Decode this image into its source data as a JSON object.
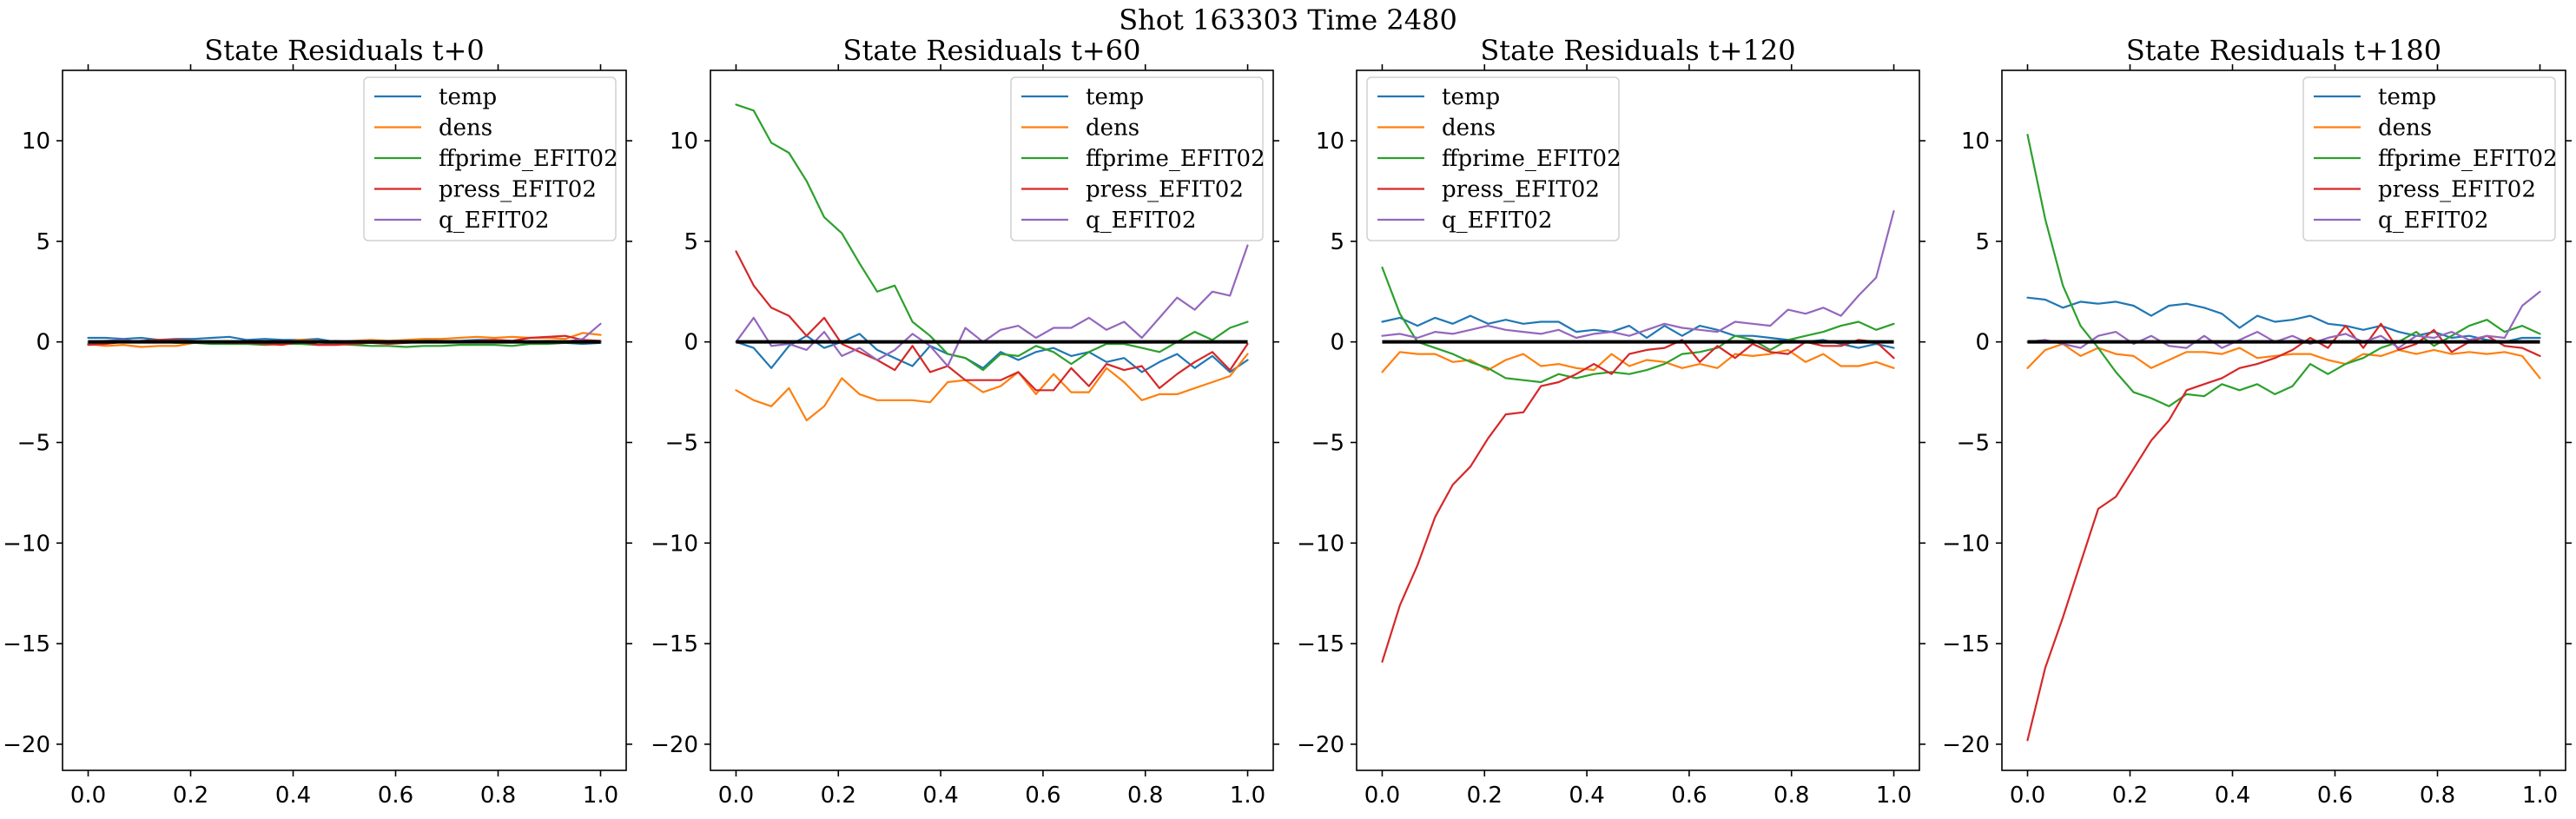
{
  "figure": {
    "suptitle": "Shot 163303   Time 2480"
  },
  "colors": {
    "temp": "#1f77b4",
    "dens": "#ff7f0e",
    "ffprime_EFIT02": "#2ca02c",
    "press_EFIT02": "#d62728",
    "q_EFIT02": "#9467bd",
    "zero_line": "#000000"
  },
  "chart_data": [
    {
      "type": "line",
      "title": "State Residuals t+0",
      "xlabel": "",
      "ylabel": "",
      "xlim": [
        -0.05,
        1.05
      ],
      "ylim": [
        -21.3,
        13.5
      ],
      "xticks": [
        0.0,
        0.2,
        0.4,
        0.6,
        0.8,
        1.0
      ],
      "xtick_labels": [
        "0.0",
        "0.2",
        "0.4",
        "0.6",
        "0.8",
        "1.0"
      ],
      "yticks": [
        -20,
        -15,
        -10,
        -5,
        0,
        5,
        10
      ],
      "ytick_labels": [
        "−20",
        "−15",
        "−10",
        "−5",
        "0",
        "5",
        "10"
      ],
      "grid": false,
      "legend_position": "upper right",
      "x": [
        0.0,
        0.0345,
        0.069,
        0.1034,
        0.1379,
        0.1724,
        0.2069,
        0.2414,
        0.2759,
        0.3103,
        0.3448,
        0.3793,
        0.4138,
        0.4483,
        0.4828,
        0.5172,
        0.5517,
        0.5862,
        0.6207,
        0.6552,
        0.6897,
        0.7241,
        0.7586,
        0.7931,
        0.8276,
        0.8621,
        0.8966,
        0.931,
        0.9655,
        1.0
      ],
      "series": [
        {
          "name": "temp",
          "values": [
            0.2,
            0.2,
            0.15,
            0.2,
            0.1,
            0.15,
            0.15,
            0.2,
            0.25,
            0.1,
            0.15,
            0.1,
            0.1,
            0.15,
            0.0,
            0.0,
            0.05,
            0.0,
            0.05,
            0.1,
            0.05,
            0.05,
            0.1,
            0.1,
            0.05,
            0.0,
            -0.05,
            -0.05,
            -0.1,
            -0.05
          ]
        },
        {
          "name": "dens",
          "values": [
            -0.1,
            -0.2,
            -0.15,
            -0.25,
            -0.2,
            -0.2,
            -0.05,
            0.0,
            0.0,
            0.05,
            -0.05,
            0.0,
            0.1,
            0.05,
            0.0,
            0.05,
            0.1,
            0.05,
            0.1,
            0.15,
            0.15,
            0.2,
            0.25,
            0.2,
            0.25,
            0.2,
            0.2,
            0.15,
            0.45,
            0.35
          ]
        },
        {
          "name": "ffprime_EFIT02",
          "values": [
            -0.1,
            -0.05,
            0.0,
            0.05,
            0.0,
            -0.05,
            -0.05,
            -0.1,
            -0.1,
            -0.1,
            -0.15,
            -0.1,
            -0.1,
            -0.15,
            -0.1,
            -0.15,
            -0.2,
            -0.2,
            -0.25,
            -0.2,
            -0.2,
            -0.15,
            -0.15,
            -0.15,
            -0.2,
            -0.1,
            -0.1,
            -0.05,
            -0.05,
            0.0
          ]
        },
        {
          "name": "press_EFIT02",
          "values": [
            -0.15,
            -0.1,
            0.0,
            0.05,
            0.1,
            0.1,
            0.05,
            0.0,
            -0.05,
            -0.05,
            -0.1,
            -0.15,
            0.0,
            -0.15,
            -0.15,
            -0.1,
            -0.05,
            -0.1,
            -0.05,
            0.0,
            0.05,
            0.0,
            0.05,
            0.1,
            0.05,
            0.2,
            0.25,
            0.3,
            0.1,
            0.05
          ]
        },
        {
          "name": "q_EFIT02",
          "values": [
            0.0,
            0.05,
            0.1,
            0.0,
            0.05,
            0.0,
            0.05,
            0.0,
            0.0,
            0.05,
            0.0,
            0.05,
            0.0,
            0.0,
            0.05,
            0.0,
            0.05,
            0.0,
            0.05,
            0.0,
            0.0,
            0.05,
            0.0,
            0.05,
            0.0,
            0.0,
            0.05,
            0.0,
            0.15,
            0.9
          ]
        }
      ]
    },
    {
      "type": "line",
      "title": "State Residuals t+60",
      "xlabel": "",
      "ylabel": "",
      "xlim": [
        -0.05,
        1.05
      ],
      "ylim": [
        -21.3,
        13.5
      ],
      "xticks": [
        0.0,
        0.2,
        0.4,
        0.6,
        0.8,
        1.0
      ],
      "xtick_labels": [
        "0.0",
        "0.2",
        "0.4",
        "0.6",
        "0.8",
        "1.0"
      ],
      "yticks": [
        -20,
        -15,
        -10,
        -5,
        0,
        5,
        10
      ],
      "ytick_labels": [
        "−20",
        "−15",
        "−10",
        "−5",
        "0",
        "5",
        "10"
      ],
      "grid": false,
      "legend_position": "upper right",
      "x": [
        0.0,
        0.0345,
        0.069,
        0.1034,
        0.1379,
        0.1724,
        0.2069,
        0.2414,
        0.2759,
        0.3103,
        0.3448,
        0.3793,
        0.4138,
        0.4483,
        0.4828,
        0.5172,
        0.5517,
        0.5862,
        0.6207,
        0.6552,
        0.6897,
        0.7241,
        0.7586,
        0.7931,
        0.8276,
        0.8621,
        0.8966,
        0.931,
        0.9655,
        1.0
      ],
      "series": [
        {
          "name": "temp",
          "values": [
            0.0,
            -0.3,
            -1.3,
            -0.2,
            0.3,
            -0.3,
            0.0,
            0.4,
            -0.4,
            -0.8,
            -1.2,
            -0.2,
            -0.6,
            -0.8,
            -1.3,
            -0.5,
            -0.9,
            -0.5,
            -0.3,
            -0.7,
            -0.5,
            -1.0,
            -0.8,
            -1.5,
            -1.0,
            -0.6,
            -1.3,
            -0.7,
            -1.5,
            -0.9
          ]
        },
        {
          "name": "dens",
          "values": [
            -2.4,
            -2.9,
            -3.2,
            -2.3,
            -3.9,
            -3.2,
            -1.8,
            -2.6,
            -2.9,
            -2.9,
            -2.9,
            -3.0,
            -2.0,
            -1.9,
            -2.5,
            -2.2,
            -1.5,
            -2.6,
            -1.6,
            -2.5,
            -2.5,
            -1.3,
            -2.0,
            -2.9,
            -2.6,
            -2.6,
            -2.3,
            -2.0,
            -1.7,
            -0.6
          ]
        },
        {
          "name": "ffprime_EFIT02",
          "values": [
            11.8,
            11.5,
            9.9,
            9.4,
            8.0,
            6.2,
            5.4,
            3.9,
            2.5,
            2.8,
            1.0,
            0.3,
            -0.6,
            -0.8,
            -1.4,
            -0.6,
            -0.7,
            -0.2,
            -0.5,
            -1.1,
            -0.5,
            -0.1,
            -0.1,
            -0.3,
            -0.5,
            0.0,
            0.5,
            0.1,
            0.7,
            1.0
          ]
        },
        {
          "name": "press_EFIT02",
          "values": [
            4.5,
            2.8,
            1.7,
            1.3,
            0.3,
            1.2,
            -0.1,
            -0.5,
            -0.9,
            -1.4,
            -0.2,
            -1.5,
            -1.2,
            -1.9,
            -1.9,
            -1.9,
            -1.5,
            -2.4,
            -2.4,
            -1.3,
            -2.2,
            -1.1,
            -1.4,
            -1.2,
            -2.3,
            -1.6,
            -1.0,
            -0.5,
            -1.4,
            -0.1
          ]
        },
        {
          "name": "q_EFIT02",
          "values": [
            0.0,
            1.2,
            -0.2,
            -0.1,
            -0.4,
            0.5,
            -0.7,
            -0.3,
            -0.9,
            -0.4,
            0.4,
            -0.2,
            -1.2,
            0.7,
            0.0,
            0.6,
            0.8,
            0.2,
            0.7,
            0.7,
            1.2,
            0.6,
            1.0,
            0.2,
            1.2,
            2.2,
            1.6,
            2.5,
            2.3,
            4.8
          ]
        }
      ]
    },
    {
      "type": "line",
      "title": "State Residuals t+120",
      "xlabel": "",
      "ylabel": "",
      "xlim": [
        -0.05,
        1.05
      ],
      "ylim": [
        -21.3,
        13.5
      ],
      "xticks": [
        0.0,
        0.2,
        0.4,
        0.6,
        0.8,
        1.0
      ],
      "xtick_labels": [
        "0.0",
        "0.2",
        "0.4",
        "0.6",
        "0.8",
        "1.0"
      ],
      "yticks": [
        -20,
        -15,
        -10,
        -5,
        0,
        5,
        10
      ],
      "ytick_labels": [
        "−20",
        "−15",
        "−10",
        "−5",
        "0",
        "5",
        "10"
      ],
      "grid": false,
      "legend_position": "upper left",
      "x": [
        0.0,
        0.0345,
        0.069,
        0.1034,
        0.1379,
        0.1724,
        0.2069,
        0.2414,
        0.2759,
        0.3103,
        0.3448,
        0.3793,
        0.4138,
        0.4483,
        0.4828,
        0.5172,
        0.5517,
        0.5862,
        0.6207,
        0.6552,
        0.6897,
        0.7241,
        0.7586,
        0.7931,
        0.8276,
        0.8621,
        0.8966,
        0.931,
        0.9655,
        1.0
      ],
      "series": [
        {
          "name": "temp",
          "values": [
            1.0,
            1.2,
            0.8,
            1.2,
            0.9,
            1.3,
            0.9,
            1.1,
            0.9,
            1.0,
            1.0,
            0.5,
            0.6,
            0.5,
            0.8,
            0.2,
            0.8,
            0.3,
            0.8,
            0.6,
            0.3,
            0.3,
            0.2,
            0.1,
            0.0,
            0.1,
            -0.1,
            -0.3,
            -0.1,
            -0.3
          ]
        },
        {
          "name": "dens",
          "values": [
            -1.5,
            -0.5,
            -0.6,
            -0.6,
            -1.0,
            -0.9,
            -1.4,
            -0.9,
            -0.6,
            -1.2,
            -1.1,
            -1.3,
            -1.4,
            -0.6,
            -1.2,
            -0.9,
            -1.0,
            -1.3,
            -1.1,
            -1.3,
            -0.6,
            -0.7,
            -0.6,
            -0.4,
            -1.0,
            -0.6,
            -1.2,
            -1.2,
            -1.0,
            -1.3
          ]
        },
        {
          "name": "ffprime_EFIT02",
          "values": [
            3.7,
            1.4,
            0.0,
            -0.3,
            -0.6,
            -1.0,
            -1.3,
            -1.8,
            -1.9,
            -2.0,
            -1.6,
            -1.8,
            -1.6,
            -1.5,
            -1.6,
            -1.4,
            -1.1,
            -0.6,
            -0.5,
            -0.3,
            0.3,
            0.1,
            -0.4,
            0.1,
            0.3,
            0.5,
            0.8,
            1.0,
            0.6,
            0.9
          ]
        },
        {
          "name": "press_EFIT02",
          "values": [
            -15.9,
            -13.1,
            -11.1,
            -8.7,
            -7.1,
            -6.2,
            -4.8,
            -3.6,
            -3.5,
            -2.2,
            -2.0,
            -1.6,
            -1.1,
            -1.6,
            -0.6,
            -0.4,
            -0.3,
            0.1,
            -1.0,
            -0.2,
            -0.8,
            -0.1,
            -0.5,
            -0.6,
            0.0,
            -0.2,
            -0.2,
            0.1,
            0.0,
            -0.8
          ]
        },
        {
          "name": "q_EFIT02",
          "values": [
            0.3,
            0.4,
            0.2,
            0.5,
            0.4,
            0.6,
            0.8,
            0.6,
            0.5,
            0.4,
            0.6,
            0.2,
            0.4,
            0.5,
            0.3,
            0.6,
            0.9,
            0.7,
            0.6,
            0.5,
            1.0,
            0.9,
            0.8,
            1.6,
            1.4,
            1.7,
            1.3,
            2.3,
            3.2,
            6.5
          ]
        }
      ]
    },
    {
      "type": "line",
      "title": "State Residuals t+180",
      "xlabel": "",
      "ylabel": "",
      "xlim": [
        -0.05,
        1.05
      ],
      "ylim": [
        -21.3,
        13.5
      ],
      "xticks": [
        0.0,
        0.2,
        0.4,
        0.6,
        0.8,
        1.0
      ],
      "xtick_labels": [
        "0.0",
        "0.2",
        "0.4",
        "0.6",
        "0.8",
        "1.0"
      ],
      "yticks": [
        -20,
        -15,
        -10,
        -5,
        0,
        5,
        10
      ],
      "ytick_labels": [
        "−20",
        "−15",
        "−10",
        "−5",
        "0",
        "5",
        "10"
      ],
      "grid": false,
      "legend_position": "upper right",
      "x": [
        0.0,
        0.0345,
        0.069,
        0.1034,
        0.1379,
        0.1724,
        0.2069,
        0.2414,
        0.2759,
        0.3103,
        0.3448,
        0.3793,
        0.4138,
        0.4483,
        0.4828,
        0.5172,
        0.5517,
        0.5862,
        0.6207,
        0.6552,
        0.6897,
        0.7241,
        0.7586,
        0.7931,
        0.8276,
        0.8621,
        0.8966,
        0.931,
        0.9655,
        1.0
      ],
      "series": [
        {
          "name": "temp",
          "values": [
            2.2,
            2.1,
            1.7,
            2.0,
            1.9,
            2.0,
            1.8,
            1.3,
            1.8,
            1.9,
            1.7,
            1.4,
            0.7,
            1.3,
            1.0,
            1.1,
            1.3,
            0.9,
            0.8,
            0.6,
            0.8,
            0.5,
            0.3,
            0.5,
            0.2,
            0.3,
            0.1,
            0.0,
            0.2,
            0.2
          ]
        },
        {
          "name": "dens",
          "values": [
            -1.3,
            -0.4,
            -0.1,
            -0.7,
            -0.3,
            -0.6,
            -0.7,
            -1.3,
            -0.9,
            -0.5,
            -0.5,
            -0.6,
            -0.3,
            -0.8,
            -0.7,
            -0.6,
            -0.6,
            -0.9,
            -1.1,
            -0.6,
            -0.7,
            -0.4,
            -0.6,
            -0.4,
            -0.6,
            -0.5,
            -0.6,
            -0.5,
            -0.7,
            -1.8
          ]
        },
        {
          "name": "ffprime_EFIT02",
          "values": [
            10.3,
            6.1,
            2.8,
            0.8,
            -0.3,
            -1.5,
            -2.5,
            -2.8,
            -3.2,
            -2.6,
            -2.7,
            -2.1,
            -2.4,
            -2.1,
            -2.6,
            -2.2,
            -1.1,
            -1.6,
            -1.1,
            -0.8,
            -0.3,
            0.0,
            0.5,
            -0.2,
            0.3,
            0.8,
            1.1,
            0.5,
            0.8,
            0.4
          ]
        },
        {
          "name": "press_EFIT02",
          "values": [
            -19.8,
            -16.2,
            -13.7,
            -11.0,
            -8.3,
            -7.7,
            -6.3,
            -4.9,
            -3.9,
            -2.4,
            -2.1,
            -1.8,
            -1.3,
            -1.1,
            -0.8,
            -0.4,
            0.2,
            -0.3,
            0.8,
            -0.3,
            0.9,
            -0.4,
            -0.1,
            0.6,
            -0.5,
            0.0,
            0.3,
            -0.2,
            -0.3,
            -0.7
          ]
        },
        {
          "name": "q_EFIT02",
          "values": [
            0.0,
            0.1,
            -0.1,
            -0.3,
            0.3,
            0.5,
            -0.1,
            0.3,
            -0.2,
            -0.3,
            0.3,
            -0.3,
            0.1,
            0.5,
            0.0,
            0.3,
            -0.1,
            0.2,
            0.4,
            0.0,
            0.3,
            -0.3,
            0.3,
            0.2,
            0.5,
            0.1,
            0.3,
            0.2,
            1.8,
            2.5
          ]
        }
      ]
    }
  ]
}
